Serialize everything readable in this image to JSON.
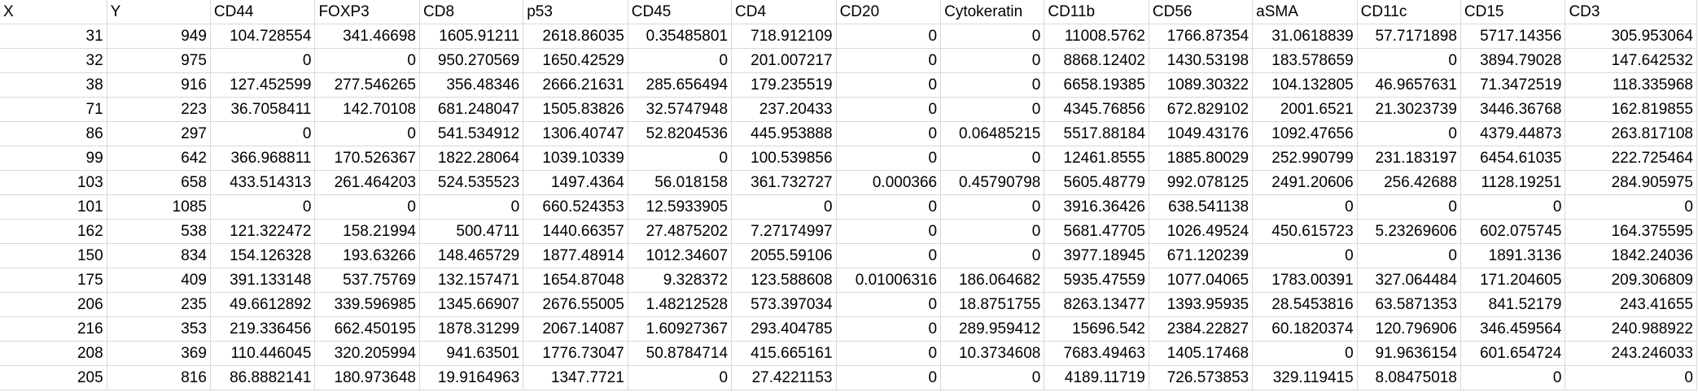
{
  "sheet": {
    "headers": [
      "X",
      "Y",
      "CD44",
      "FOXP3",
      "CD8",
      "p53",
      "CD45",
      "CD4",
      "CD20",
      "Cytokeratin",
      "CD11b",
      "CD56",
      "aSMA",
      "CD11c",
      "CD15",
      "CD3"
    ],
    "rows": [
      [
        "31",
        "949",
        "104.728554",
        "341.46698",
        "1605.91211",
        "2618.86035",
        "0.35485801",
        "718.912109",
        "0",
        "0",
        "11008.5762",
        "1766.87354",
        "31.0618839",
        "57.7171898",
        "5717.14356",
        "305.953064"
      ],
      [
        "32",
        "975",
        "0",
        "0",
        "950.270569",
        "1650.42529",
        "0",
        "201.007217",
        "0",
        "0",
        "8868.12402",
        "1430.53198",
        "183.578659",
        "0",
        "3894.79028",
        "147.642532"
      ],
      [
        "38",
        "916",
        "127.452599",
        "277.546265",
        "356.48346",
        "2666.21631",
        "285.656494",
        "179.235519",
        "0",
        "0",
        "6658.19385",
        "1089.30322",
        "104.132805",
        "46.9657631",
        "71.3472519",
        "118.335968"
      ],
      [
        "71",
        "223",
        "36.7058411",
        "142.70108",
        "681.248047",
        "1505.83826",
        "32.5747948",
        "237.20433",
        "0",
        "0",
        "4345.76856",
        "672.829102",
        "2001.6521",
        "21.3023739",
        "3446.36768",
        "162.819855"
      ],
      [
        "86",
        "297",
        "0",
        "0",
        "541.534912",
        "1306.40747",
        "52.8204536",
        "445.953888",
        "0",
        "0.06485215",
        "5517.88184",
        "1049.43176",
        "1092.47656",
        "0",
        "4379.44873",
        "263.817108"
      ],
      [
        "99",
        "642",
        "366.968811",
        "170.526367",
        "1822.28064",
        "1039.10339",
        "0",
        "100.539856",
        "0",
        "0",
        "12461.8555",
        "1885.80029",
        "252.990799",
        "231.183197",
        "6454.61035",
        "222.725464"
      ],
      [
        "103",
        "658",
        "433.514313",
        "261.464203",
        "524.535523",
        "1497.4364",
        "56.018158",
        "361.732727",
        "0.000366",
        "0.45790798",
        "5605.48779",
        "992.078125",
        "2491.20606",
        "256.42688",
        "1128.19251",
        "284.905975"
      ],
      [
        "101",
        "1085",
        "0",
        "0",
        "0",
        "660.524353",
        "12.5933905",
        "0",
        "0",
        "0",
        "3916.36426",
        "638.541138",
        "0",
        "0",
        "0",
        "0"
      ],
      [
        "162",
        "538",
        "121.322472",
        "158.21994",
        "500.4711",
        "1440.66357",
        "27.4875202",
        "7.27174997",
        "0",
        "0",
        "5681.47705",
        "1026.49524",
        "450.615723",
        "5.23269606",
        "602.075745",
        "164.375595"
      ],
      [
        "150",
        "834",
        "154.126328",
        "193.63266",
        "148.465729",
        "1877.48914",
        "1012.34607",
        "2055.59106",
        "0",
        "0",
        "3977.18945",
        "671.120239",
        "0",
        "0",
        "1891.3136",
        "1842.24036"
      ],
      [
        "175",
        "409",
        "391.133148",
        "537.75769",
        "132.157471",
        "1654.87048",
        "9.328372",
        "123.588608",
        "0.01006316",
        "186.064682",
        "5935.47559",
        "1077.04065",
        "1783.00391",
        "327.064484",
        "171.204605",
        "209.306809"
      ],
      [
        "206",
        "235",
        "49.6612892",
        "339.596985",
        "1345.66907",
        "2676.55005",
        "1.48212528",
        "573.397034",
        "0",
        "18.8751755",
        "8263.13477",
        "1393.95935",
        "28.5453816",
        "63.5871353",
        "841.52179",
        "243.41655"
      ],
      [
        "216",
        "353",
        "219.336456",
        "662.450195",
        "1878.31299",
        "2067.14087",
        "1.60927367",
        "293.404785",
        "0",
        "289.959412",
        "15696.542",
        "2384.22827",
        "60.1820374",
        "120.796906",
        "346.459564",
        "240.988922"
      ],
      [
        "208",
        "369",
        "110.446045",
        "320.205994",
        "941.63501",
        "1776.73047",
        "50.8784714",
        "415.665161",
        "0",
        "10.3734608",
        "7683.49463",
        "1405.17468",
        "0",
        "91.9636154",
        "601.654724",
        "243.246033"
      ],
      [
        "205",
        "816",
        "86.8882141",
        "180.973648",
        "19.9164963",
        "1347.7721",
        "0",
        "27.4221153",
        "0",
        "0",
        "4189.11719",
        "726.573853",
        "329.119415",
        "8.08475018",
        "0",
        "0"
      ]
    ]
  }
}
